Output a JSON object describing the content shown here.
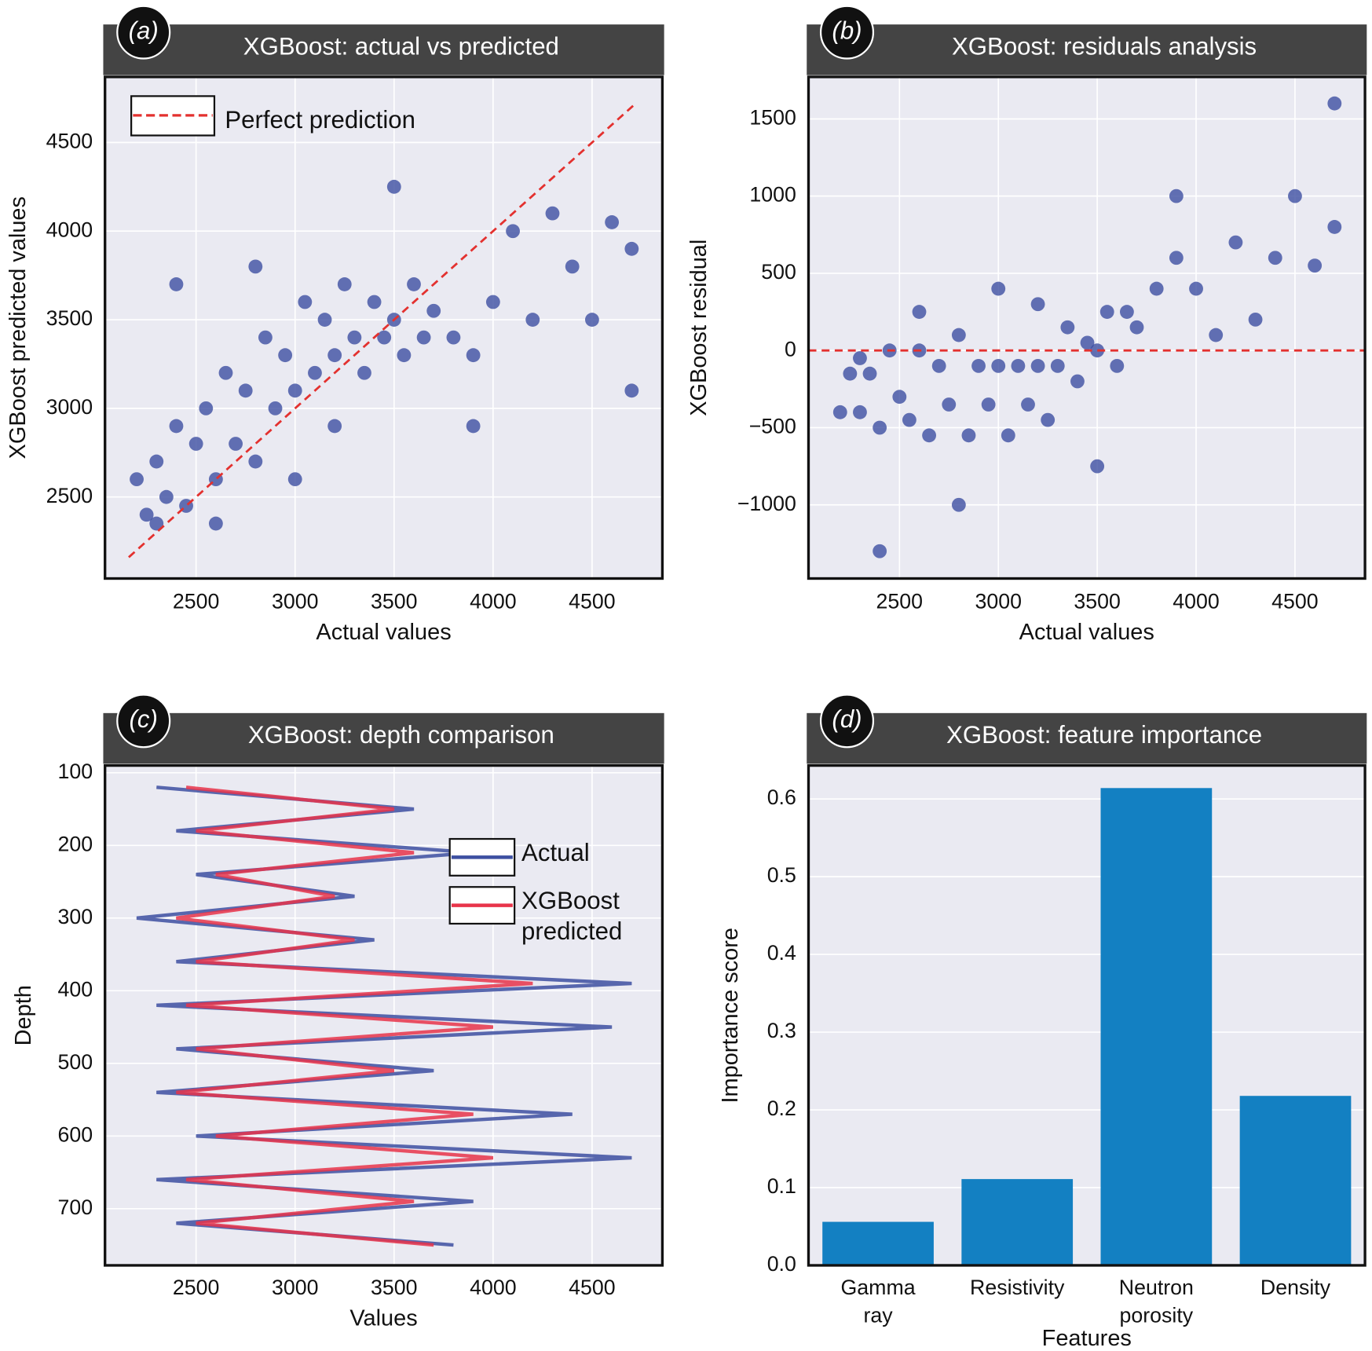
{
  "chart_data": [
    {
      "type": "scatter",
      "panel": "(a)",
      "title": "XGBoost: actual vs predicted",
      "xlabel": "Actual values",
      "ylabel": "XGBoost predicted values",
      "color": "#3d4fa1",
      "grid": true,
      "xlim": [
        2040,
        4855
      ],
      "ylim": [
        2040,
        4870
      ],
      "xticks": [
        2500,
        3000,
        3500,
        4000,
        4500
      ],
      "yticks": [
        2500,
        3000,
        3500,
        4000,
        4500
      ],
      "x": [
        2200,
        2250,
        2300,
        2350,
        2400,
        2450,
        2500,
        2550,
        2600,
        2650,
        2700,
        2750,
        2800,
        2850,
        2900,
        2950,
        3000,
        3050,
        3100,
        3150,
        3200,
        3250,
        3300,
        3350,
        3400,
        3450,
        3500,
        3550,
        3600,
        3650,
        3700,
        3800,
        3900,
        4000,
        4100,
        4200,
        4300,
        4400,
        4500,
        4600,
        4700,
        2400,
        3500,
        3900,
        4700,
        2300,
        2600,
        3000,
        3200,
        2800
      ],
      "y": [
        2600,
        2400,
        2700,
        2500,
        2900,
        2450,
        2800,
        3000,
        2600,
        3200,
        2800,
        3100,
        2700,
        3400,
        3000,
        3300,
        3100,
        3600,
        3200,
        3500,
        3300,
        3700,
        3400,
        3200,
        3600,
        3400,
        3500,
        3300,
        3700,
        3400,
        3550,
        3400,
        3300,
        3600,
        4000,
        3500,
        4100,
        3800,
        3500,
        4050,
        3900,
        3700,
        4250,
        2900,
        3100,
        2350,
        2350,
        2600,
        2900,
        3800
      ],
      "line": {
        "name": "Perfect prediction",
        "color": "#e3312f",
        "x": [
          2160,
          4720
        ],
        "y": [
          2160,
          4720
        ]
      }
    },
    {
      "type": "scatter",
      "panel": "(b)",
      "title": "XGBoost: residuals analysis",
      "xlabel": "Actual values",
      "ylabel": "XGBoost residual",
      "color": "#3d4fa1",
      "grid": true,
      "xlim": [
        2040,
        4854
      ],
      "ylim": [
        -1477,
        1772
      ],
      "xticks": [
        2500,
        3000,
        3500,
        4000,
        4500
      ],
      "yticks": [
        {
          "value": -1000,
          "label": "−1000"
        },
        {
          "value": -500,
          "label": "−500"
        },
        0,
        500,
        1000,
        1500
      ],
      "x": [
        2200,
        2250,
        2300,
        2350,
        2400,
        2450,
        2500,
        2550,
        2600,
        2650,
        2700,
        2750,
        2800,
        2850,
        2900,
        2950,
        3000,
        3050,
        3100,
        3150,
        3200,
        3250,
        3300,
        3350,
        3400,
        3450,
        3500,
        3550,
        3600,
        3650,
        3700,
        3800,
        3900,
        4000,
        4100,
        4200,
        4300,
        4400,
        4500,
        4600,
        4700,
        2400,
        3500,
        3900,
        4700,
        2300,
        2600,
        3000,
        3200,
        2800
      ],
      "y": [
        -400,
        -150,
        -400,
        -150,
        -500,
        0,
        -300,
        -450,
        0,
        -550,
        -100,
        -350,
        100,
        -550,
        -100,
        -350,
        -100,
        -550,
        -100,
        -350,
        -100,
        -450,
        -100,
        150,
        -200,
        50,
        0,
        250,
        -100,
        250,
        150,
        400,
        600,
        400,
        100,
        700,
        200,
        600,
        1000,
        550,
        800,
        -1300,
        -750,
        1000,
        1600,
        -50,
        250,
        400,
        300,
        -1000
      ],
      "hline": {
        "value": 0,
        "color": "#e3312f"
      }
    },
    {
      "type": "depth-line",
      "panel": "(c)",
      "title": "XGBoost: depth comparison",
      "xlabel": "Values",
      "ylabel": "Depth",
      "grid": true,
      "xlim": [
        2040,
        4855
      ],
      "ylim": [
        778,
        90
      ],
      "xticks": [
        2500,
        3000,
        3500,
        4000,
        4500
      ],
      "yticks": [
        100,
        200,
        300,
        400,
        500,
        600,
        700
      ],
      "y": [
        120,
        150,
        180,
        210,
        240,
        270,
        300,
        330,
        360,
        390,
        420,
        450,
        480,
        510,
        540,
        570,
        600,
        630,
        660,
        690,
        720,
        750
      ],
      "series": [
        {
          "name": "Actual",
          "color": "#3d4fa1",
          "values": [
            2300,
            3600,
            2400,
            3900,
            2500,
            3300,
            2200,
            3400,
            2400,
            4700,
            2300,
            4600,
            2400,
            3700,
            2300,
            4400,
            2500,
            4700,
            2300,
            3900,
            2400,
            3800
          ]
        },
        {
          "name": "XGBoost predicted",
          "color": "#e8344a",
          "values": [
            2450,
            3500,
            2500,
            3600,
            2600,
            3200,
            2400,
            3300,
            2500,
            4200,
            2450,
            4000,
            2500,
            3500,
            2400,
            3900,
            2600,
            4000,
            2450,
            3600,
            2500,
            3700
          ]
        }
      ]
    },
    {
      "type": "bar",
      "panel": "(d)",
      "title": "XGBoost: feature importance",
      "xlabel": "Features",
      "ylabel": "Importance score",
      "color": "#1380c2",
      "grid": true,
      "ylim": [
        0,
        0.643
      ],
      "yticks": [
        {
          "value": 0,
          "label": "0.0"
        },
        0.1,
        0.2,
        0.3,
        0.4,
        0.5,
        0.6
      ],
      "categories": [
        [
          "Gamma",
          "ray"
        ],
        [
          "Resistivity"
        ],
        [
          "Neutron",
          "porosity"
        ],
        [
          "Density"
        ]
      ],
      "values": [
        0.056,
        0.111,
        0.614,
        0.218
      ]
    }
  ]
}
